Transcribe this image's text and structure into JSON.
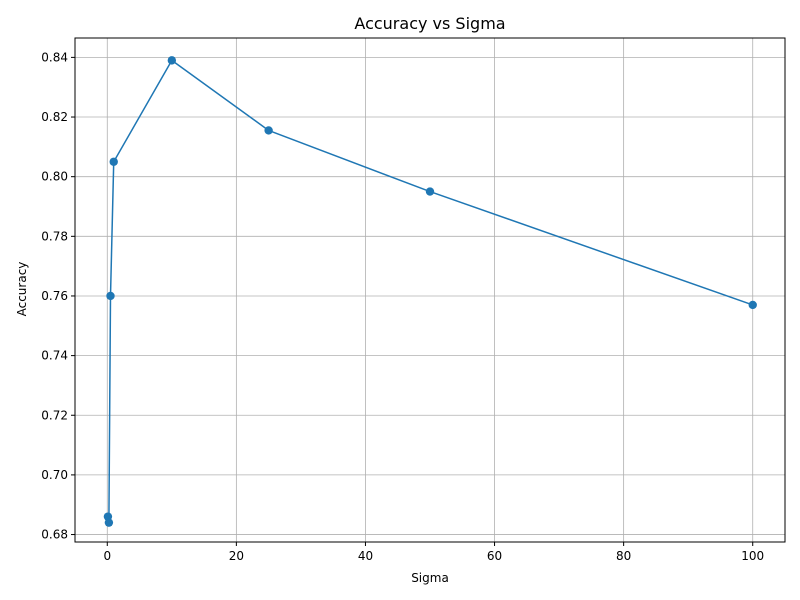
{
  "chart_data": {
    "type": "line",
    "title": "Accuracy vs Sigma",
    "xlabel": "Sigma",
    "ylabel": "Accuracy",
    "xlim": [
      -5,
      105
    ],
    "ylim": [
      0.6775,
      0.8465
    ],
    "x_ticks": [
      0,
      20,
      40,
      60,
      80,
      100
    ],
    "x_tick_labels": [
      "0",
      "20",
      "40",
      "60",
      "80",
      "100"
    ],
    "y_ticks": [
      0.68,
      0.7,
      0.72,
      0.74,
      0.76,
      0.78,
      0.8,
      0.82,
      0.84
    ],
    "y_tick_labels": [
      "0.68",
      "0.70",
      "0.72",
      "0.74",
      "0.76",
      "0.78",
      "0.80",
      "0.82",
      "0.84"
    ],
    "grid": true,
    "marker": "circle",
    "color": "#1f77b4",
    "series": [
      {
        "x": [
          0.1,
          0.25,
          0.5,
          1,
          10,
          25,
          50,
          100
        ],
        "y": [
          0.686,
          0.684,
          0.76,
          0.805,
          0.839,
          0.8155,
          0.795,
          0.757
        ]
      }
    ]
  }
}
